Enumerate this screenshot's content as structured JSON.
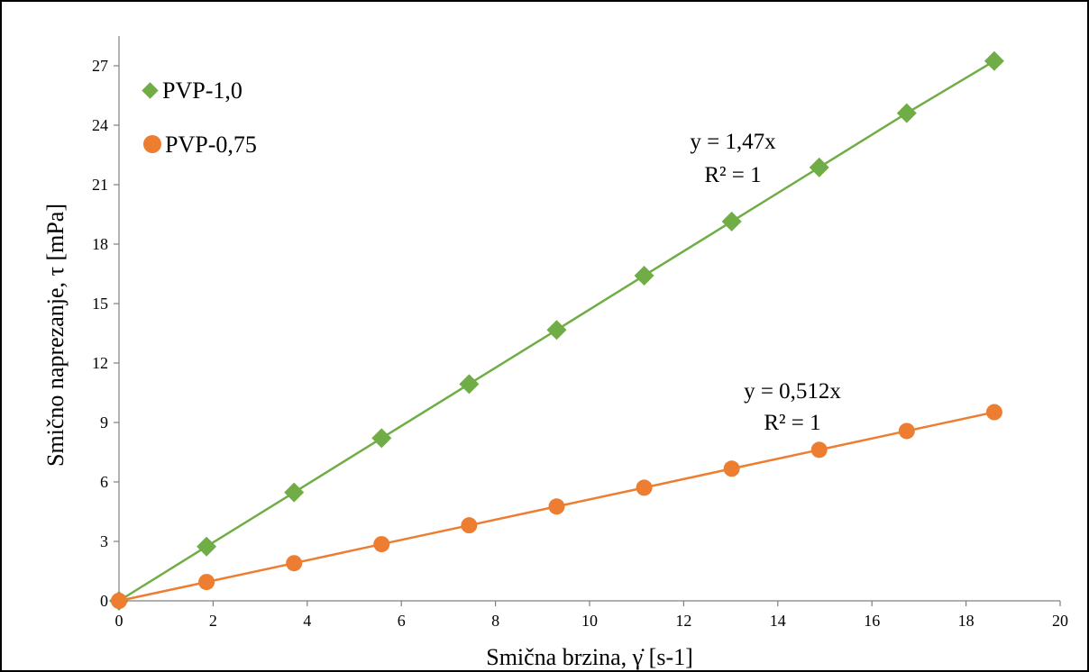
{
  "chart_data": {
    "type": "scatter",
    "xlabel": "Smična brzina, γ̇ [s-1]",
    "ylabel": "Smično naprezanje, τ [mPa]",
    "xlim": [
      0,
      20
    ],
    "ylim": [
      0,
      27
    ],
    "xticks": [
      0,
      2,
      4,
      6,
      8,
      10,
      12,
      14,
      16,
      18,
      20
    ],
    "yticks": [
      0,
      3,
      6,
      9,
      12,
      15,
      18,
      21,
      24,
      27
    ],
    "grid": false,
    "legend": "top-left",
    "series": [
      {
        "name": "PVP-1,0",
        "color": "#70ad47",
        "marker": "diamond",
        "trendline": "linear",
        "x": [
          0,
          1.86,
          3.72,
          5.58,
          7.44,
          9.3,
          11.16,
          13.02,
          14.88,
          16.74,
          18.6
        ],
        "y": [
          0,
          2.74,
          5.47,
          8.21,
          10.94,
          13.67,
          16.41,
          19.14,
          21.87,
          24.61,
          27.24
        ]
      },
      {
        "name": "PVP-0,75",
        "color": "#ed7d31",
        "marker": "circle",
        "trendline": "linear",
        "x": [
          0,
          1.86,
          3.72,
          5.58,
          7.44,
          9.3,
          11.16,
          13.02,
          14.88,
          16.74,
          18.6
        ],
        "y": [
          0,
          0.95,
          1.9,
          2.86,
          3.81,
          4.76,
          5.71,
          6.67,
          7.62,
          8.57,
          9.52
        ]
      }
    ],
    "annotations": [
      {
        "series": "PVP-1,0",
        "line1": "y = 1,47x",
        "line2": "R² = 1"
      },
      {
        "series": "PVP-0,75",
        "line1": "y = 0,512x",
        "line2": "R² = 1"
      }
    ]
  }
}
